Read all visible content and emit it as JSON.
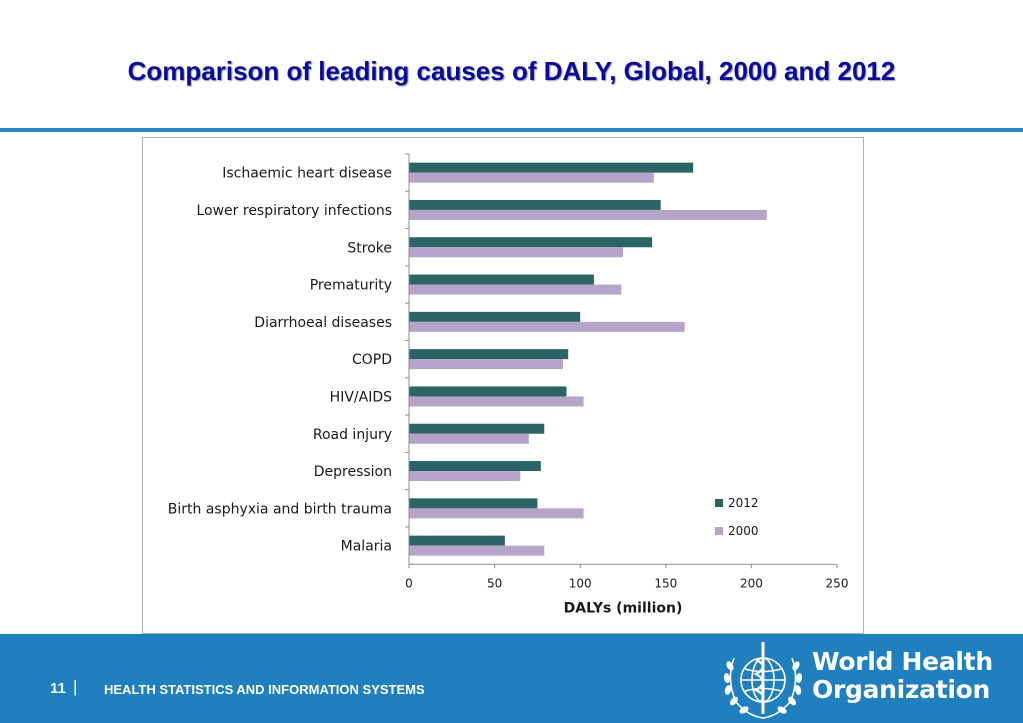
{
  "slide": {
    "title": "Comparison of leading causes of DALY, Global, 2000 and 2012"
  },
  "chart_data": {
    "type": "bar",
    "orientation": "horizontal",
    "categories": [
      "Ischaemic heart disease",
      "Lower respiratory infections",
      "Stroke",
      "Prematurity",
      "Diarrhoeal diseases",
      "COPD",
      "HIV/AIDS",
      "Road injury",
      "Depression",
      "Birth asphyxia and birth trauma",
      "Malaria"
    ],
    "series": [
      {
        "name": "2012",
        "color": "#2a6464",
        "values": [
          166,
          147,
          142,
          108,
          100,
          93,
          92,
          79,
          77,
          75,
          56
        ]
      },
      {
        "name": "2000",
        "color": "#b5a3ca",
        "values": [
          143,
          209,
          125,
          124,
          161,
          90,
          102,
          70,
          65,
          102,
          79
        ]
      }
    ],
    "xlabel": "DALYs (million)",
    "ylabel": "",
    "xlim": [
      0,
      250
    ],
    "xticks": [
      "0",
      "50",
      "100",
      "150",
      "200",
      "250"
    ],
    "grid": false,
    "legend_position": "bottom-right"
  },
  "footer": {
    "page_number": "11",
    "separator": "|",
    "department": "HEALTH STATISTICS AND INFORMATION SYSTEMS",
    "logo_line1": "World Health",
    "logo_line2": "Organization",
    "logo_icon": "who-emblem-icon"
  }
}
